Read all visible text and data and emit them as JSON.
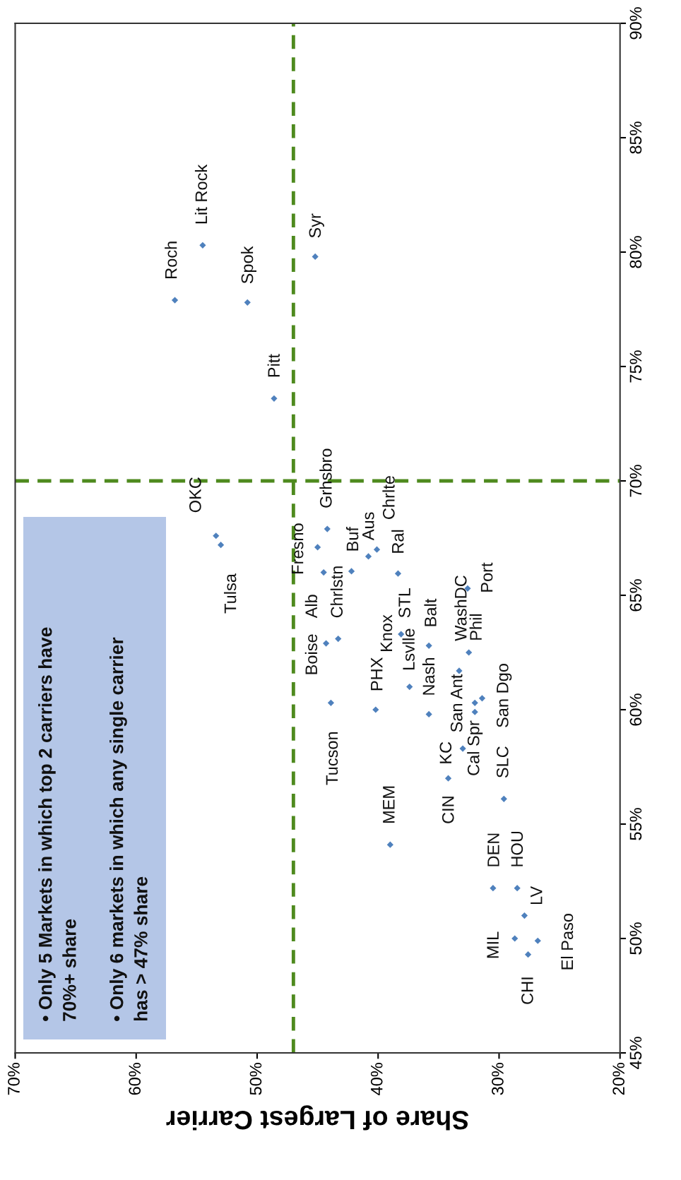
{
  "chart_data": {
    "type": "scatter",
    "xlabel": "Share of Largest Carrier",
    "xlim": [
      70,
      20
    ],
    "xticks": [
      {
        "value": 70,
        "label": "70%"
      },
      {
        "value": 60,
        "label": "60%"
      },
      {
        "value": 50,
        "label": "50%"
      },
      {
        "value": 40,
        "label": "40%"
      },
      {
        "value": 30,
        "label": "30%"
      },
      {
        "value": 20,
        "label": "20%"
      }
    ],
    "ylim": [
      45,
      90
    ],
    "yticks": [
      {
        "value": 45,
        "label": "45%"
      },
      {
        "value": 50,
        "label": "50%"
      },
      {
        "value": 55,
        "label": "55%"
      },
      {
        "value": 60,
        "label": "60%"
      },
      {
        "value": 65,
        "label": "65%"
      },
      {
        "value": 70,
        "label": "70%"
      },
      {
        "value": 75,
        "label": "75%"
      },
      {
        "value": 80,
        "label": "80%"
      },
      {
        "value": 85,
        "label": "85%"
      },
      {
        "value": 90,
        "label": "90%"
      }
    ],
    "grid": false,
    "marker": "diamond",
    "series": [
      {
        "color": "#4f81bd",
        "x": [
          56.8,
          54.5,
          50.8,
          45.2,
          48.6,
          53.4,
          53.0,
          44.2,
          45.0,
          44.5,
          42.2,
          40.8,
          40.1,
          38.35,
          44.3,
          43.3,
          38.1,
          35.8,
          32.5,
          32.6,
          33.3,
          37.4,
          43.9,
          40.2,
          35.8,
          31.4,
          32.0,
          32.0,
          33.0,
          34.2,
          29.6,
          39.0,
          30.5,
          28.5,
          27.9,
          28.7,
          26.8,
          27.6
        ],
        "values": [
          77.9,
          80.3,
          77.8,
          79.8,
          73.6,
          67.6,
          67.2,
          67.9,
          67.1,
          66.0,
          66.05,
          66.7,
          67.0,
          65.95,
          62.9,
          63.1,
          63.3,
          62.8,
          62.5,
          65.3,
          61.7,
          61.0,
          60.3,
          60.0,
          59.8,
          60.5,
          60.3,
          59.9,
          58.3,
          57.0,
          56.1,
          54.1,
          52.2,
          52.2,
          51.0,
          50.0,
          49.9,
          49.3
        ]
      }
    ],
    "ref_lines": [
      {
        "axis": "x",
        "value": 47,
        "color": "#4e8a1e",
        "line_style": "dashed"
      },
      {
        "axis": "y",
        "value": 70,
        "color": "#4e8a1e",
        "line_style": "dashed"
      }
    ],
    "annotations": [
      "• Only 5 Markets in which top 2 carriers have\n70%+ share",
      "• Only 6 markets in which any single carrier\nhas > 47% share",
      {
        "text": "Roch",
        "x": 56.8,
        "y": 77.9
      },
      {
        "text": "Lit Rock",
        "x": 54.5,
        "y": 80.3
      },
      {
        "text": "Spok",
        "x": 50.8,
        "y": 77.8
      },
      {
        "text": "Syr",
        "x": 45.2,
        "y": 79.8
      },
      {
        "text": "Pitt",
        "x": 48.6,
        "y": 73.6
      },
      {
        "text": "OKC",
        "x": 53.4,
        "y": 67.6
      },
      {
        "text": "Tulsa",
        "x": 53.0,
        "y": 67.2
      },
      {
        "text": "Fresno",
        "x": 45.0,
        "y": 67.1
      },
      {
        "text": "Grhsbro",
        "x": 44.2,
        "y": 67.9
      },
      {
        "text": "Boise",
        "x": 44.3,
        "y": 62.9
      },
      {
        "text": "Alb",
        "x": 44.5,
        "y": 66.0
      },
      {
        "text": "Chrlstn",
        "x": 43.3,
        "y": 63.1
      },
      {
        "text": "Buf",
        "x": 42.2,
        "y": 66.05
      },
      {
        "text": "Aus",
        "x": 40.8,
        "y": 66.7
      },
      {
        "text": "Chrlte",
        "x": 40.1,
        "y": 67.0
      },
      {
        "text": "Ral",
        "x": 38.35,
        "y": 65.95
      },
      {
        "text": "Knox",
        "x": 38.1,
        "y": 63.3
      },
      {
        "text": "STL",
        "x": 38.1,
        "y": 63.3
      },
      {
        "text": "Lsvlle",
        "x": 37.4,
        "y": 61.0
      },
      {
        "text": "Nash",
        "x": 35.8,
        "y": 59.8
      },
      {
        "text": "Balt",
        "x": 35.8,
        "y": 62.8
      },
      {
        "text": "PHX",
        "x": 40.2,
        "y": 60.0
      },
      {
        "text": "WashDC",
        "x": 32.5,
        "y": 62.5
      },
      {
        "text": "Phil",
        "x": 32.5,
        "y": 62.5
      },
      {
        "text": "Port",
        "x": 32.6,
        "y": 65.3
      },
      {
        "text": "Tucson",
        "x": 43.9,
        "y": 60.3
      },
      {
        "text": "San Ant",
        "x": 33.3,
        "y": 61.7
      },
      {
        "text": "San Dgo",
        "x": 31.4,
        "y": 60.5
      },
      {
        "text": "KC",
        "x": 33.0,
        "y": 58.3
      },
      {
        "text": "Cal Spr",
        "x": 32.0,
        "y": 59.9
      },
      {
        "text": "SLC",
        "x": 29.6,
        "y": 56.1
      },
      {
        "text": "CIN",
        "x": 34.2,
        "y": 57.0
      },
      {
        "text": "MEM",
        "x": 39.0,
        "y": 54.1
      },
      {
        "text": "DEN",
        "x": 30.5,
        "y": 52.2
      },
      {
        "text": "HOU",
        "x": 28.5,
        "y": 52.2
      },
      {
        "text": "LV",
        "x": 27.9,
        "y": 51.0
      },
      {
        "text": "MIL",
        "x": 28.7,
        "y": 50.0
      },
      {
        "text": "CHI",
        "x": 27.6,
        "y": 49.3
      },
      {
        "text": "El Paso",
        "x": 26.8,
        "y": 49.9
      }
    ]
  }
}
